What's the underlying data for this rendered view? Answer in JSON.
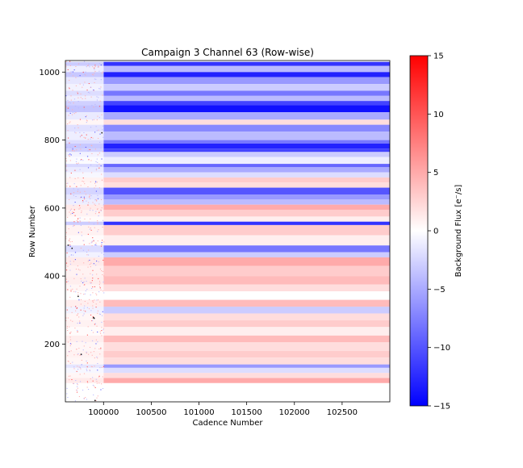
{
  "chart_data": {
    "type": "heatmap",
    "title": "Campaign 3 Channel 63 (Row-wise)",
    "xlabel": "Cadence Number",
    "ylabel": "Row Number",
    "xlim": [
      99600,
      103000
    ],
    "ylim": [
      30,
      1034
    ],
    "x_ticks": [
      100000,
      100500,
      101000,
      101500,
      102000,
      102500
    ],
    "y_ticks": [
      200,
      400,
      600,
      800,
      1000
    ],
    "x_tick_labels": [
      "100000",
      "100500",
      "101000",
      "101500",
      "102000",
      "102500"
    ],
    "y_tick_labels": [
      "200",
      "400",
      "600",
      "800",
      "1000"
    ],
    "noisy_region_end_cadence": 100000,
    "colorbar": {
      "label": "Background Flux [e⁻/s]",
      "min": -15,
      "max": 15,
      "ticks": [
        -15,
        -10,
        -5,
        0,
        5,
        10,
        15
      ],
      "tick_labels": [
        "−15",
        "−10",
        "−5",
        "0",
        "5",
        "10",
        "15"
      ],
      "colormap": "bwr",
      "colors": {
        "low": "#0000ff",
        "mid": "#ffffff",
        "high": "#ff0000"
      }
    },
    "row_bands": [
      {
        "row_start": 1018,
        "row_end": 1030,
        "value": -12
      },
      {
        "row_start": 1000,
        "row_end": 1018,
        "value": -4
      },
      {
        "row_start": 985,
        "row_end": 1000,
        "value": -13
      },
      {
        "row_start": 965,
        "row_end": 985,
        "value": -6
      },
      {
        "row_start": 945,
        "row_end": 965,
        "value": -3
      },
      {
        "row_start": 930,
        "row_end": 945,
        "value": -8
      },
      {
        "row_start": 915,
        "row_end": 930,
        "value": -4
      },
      {
        "row_start": 903,
        "row_end": 915,
        "value": -11
      },
      {
        "row_start": 882,
        "row_end": 903,
        "value": -14
      },
      {
        "row_start": 860,
        "row_end": 882,
        "value": -5
      },
      {
        "row_start": 845,
        "row_end": 860,
        "value": 2
      },
      {
        "row_start": 825,
        "row_end": 845,
        "value": -7
      },
      {
        "row_start": 800,
        "row_end": 825,
        "value": -4
      },
      {
        "row_start": 790,
        "row_end": 800,
        "value": -8
      },
      {
        "row_start": 775,
        "row_end": 790,
        "value": -13
      },
      {
        "row_start": 765,
        "row_end": 775,
        "value": -11
      },
      {
        "row_start": 750,
        "row_end": 765,
        "value": -3
      },
      {
        "row_start": 730,
        "row_end": 750,
        "value": -1
      },
      {
        "row_start": 720,
        "row_end": 730,
        "value": -9
      },
      {
        "row_start": 705,
        "row_end": 720,
        "value": -5
      },
      {
        "row_start": 690,
        "row_end": 705,
        "value": -2
      },
      {
        "row_start": 675,
        "row_end": 690,
        "value": 3
      },
      {
        "row_start": 660,
        "row_end": 675,
        "value": 2
      },
      {
        "row_start": 640,
        "row_end": 660,
        "value": -10
      },
      {
        "row_start": 625,
        "row_end": 640,
        "value": -6
      },
      {
        "row_start": 610,
        "row_end": 625,
        "value": -4
      },
      {
        "row_start": 595,
        "row_end": 610,
        "value": 5
      },
      {
        "row_start": 575,
        "row_end": 595,
        "value": 3
      },
      {
        "row_start": 560,
        "row_end": 575,
        "value": 1
      },
      {
        "row_start": 550,
        "row_end": 560,
        "value": -12
      },
      {
        "row_start": 520,
        "row_end": 550,
        "value": 3
      },
      {
        "row_start": 490,
        "row_end": 520,
        "value": 1
      },
      {
        "row_start": 470,
        "row_end": 490,
        "value": -8
      },
      {
        "row_start": 455,
        "row_end": 470,
        "value": -3
      },
      {
        "row_start": 430,
        "row_end": 455,
        "value": 5
      },
      {
        "row_start": 400,
        "row_end": 430,
        "value": 3
      },
      {
        "row_start": 375,
        "row_end": 400,
        "value": 4
      },
      {
        "row_start": 355,
        "row_end": 375,
        "value": 2
      },
      {
        "row_start": 330,
        "row_end": 355,
        "value": 0
      },
      {
        "row_start": 310,
        "row_end": 330,
        "value": 4
      },
      {
        "row_start": 290,
        "row_end": 310,
        "value": -3
      },
      {
        "row_start": 270,
        "row_end": 290,
        "value": 2
      },
      {
        "row_start": 250,
        "row_end": 270,
        "value": 3
      },
      {
        "row_start": 225,
        "row_end": 250,
        "value": 1
      },
      {
        "row_start": 205,
        "row_end": 225,
        "value": 4
      },
      {
        "row_start": 180,
        "row_end": 205,
        "value": 2
      },
      {
        "row_start": 160,
        "row_end": 180,
        "value": 3
      },
      {
        "row_start": 140,
        "row_end": 160,
        "value": 2
      },
      {
        "row_start": 130,
        "row_end": 140,
        "value": -6
      },
      {
        "row_start": 115,
        "row_end": 130,
        "value": -2
      },
      {
        "row_start": 100,
        "row_end": 115,
        "value": 2
      },
      {
        "row_start": 85,
        "row_end": 100,
        "value": 5
      },
      {
        "row_start": 30,
        "row_end": 85,
        "value": 0
      }
    ],
    "grid": false,
    "legend": "colorbar-right"
  }
}
